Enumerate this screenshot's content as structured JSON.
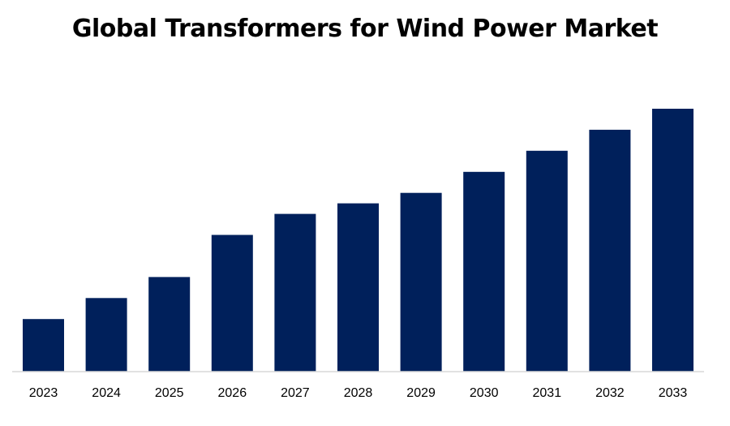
{
  "chart_data": {
    "type": "bar",
    "title": "Global Transformers for Wind Power Market",
    "categories": [
      "2023",
      "2024",
      "2025",
      "2026",
      "2027",
      "2028",
      "2029",
      "2030",
      "2031",
      "2032",
      "2033"
    ],
    "values": [
      2.5,
      3.5,
      4.5,
      6.5,
      7.5,
      8.0,
      8.5,
      9.5,
      10.5,
      11.5,
      12.5
    ],
    "xlabel": "",
    "ylabel": "",
    "ylim": [
      0,
      12.5
    ],
    "grid": false,
    "legend": "none",
    "bar_color": "#00205b",
    "axis_color": "#d9d9d9"
  }
}
